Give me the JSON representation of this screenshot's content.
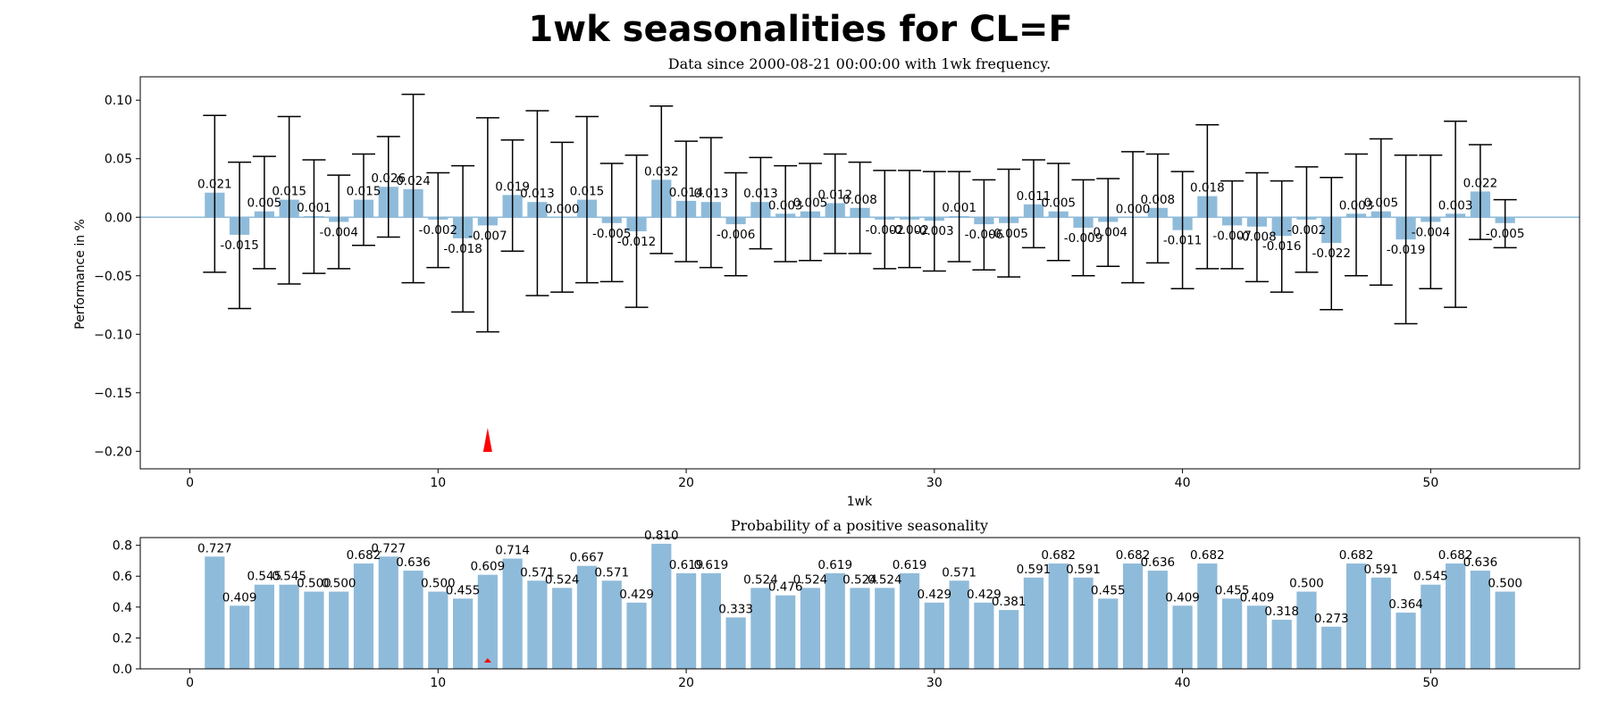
{
  "figure": {
    "title": "1wk seasonalities for CL=F"
  },
  "colors": {
    "bar": "#8fbbda",
    "zero_line": "#8fbbda",
    "error_bar": "#000000",
    "marker": "#ff0000",
    "axes": "#000000"
  },
  "chart_data": [
    {
      "type": "bar",
      "title": "Data since 2000-08-21 00:00:00 with 1wk frequency.",
      "xlabel": "1wk",
      "ylabel": "Performance in %",
      "xlim": [
        -2,
        56
      ],
      "ylim": [
        -0.215,
        0.12
      ],
      "xticks": [
        0,
        10,
        20,
        30,
        40,
        50
      ],
      "xtick_labels": [
        "0",
        "10",
        "20",
        "30",
        "40",
        "50"
      ],
      "yticks": [
        0.1,
        0.05,
        0.0,
        -0.05,
        -0.1,
        -0.15,
        -0.2
      ],
      "ytick_labels": [
        "0.10",
        "0.05",
        "0.00",
        "−0.05",
        "−0.10",
        "−0.15",
        "−0.20"
      ],
      "zero_line": true,
      "grid": false,
      "marker": {
        "x": 12,
        "shape": "red-triangle"
      },
      "x": [
        1,
        2,
        3,
        4,
        5,
        6,
        7,
        8,
        9,
        10,
        11,
        12,
        13,
        14,
        15,
        16,
        17,
        18,
        19,
        20,
        21,
        22,
        23,
        24,
        25,
        26,
        27,
        28,
        29,
        30,
        31,
        32,
        33,
        34,
        35,
        36,
        37,
        38,
        39,
        40,
        41,
        42,
        43,
        44,
        45,
        46,
        47,
        48,
        49,
        50,
        51,
        52,
        53
      ],
      "values": [
        0.021,
        -0.015,
        0.005,
        0.015,
        0.001,
        -0.004,
        0.015,
        0.026,
        0.024,
        -0.002,
        -0.018,
        -0.007,
        0.019,
        0.013,
        0.0,
        0.015,
        -0.005,
        -0.012,
        0.032,
        0.014,
        0.013,
        -0.006,
        0.013,
        0.003,
        0.005,
        0.012,
        0.008,
        -0.002,
        -0.002,
        -0.003,
        0.001,
        -0.006,
        -0.005,
        0.011,
        0.005,
        -0.009,
        -0.004,
        0.0,
        0.008,
        -0.011,
        0.018,
        -0.007,
        -0.008,
        -0.016,
        -0.002,
        -0.022,
        0.003,
        0.005,
        -0.019,
        -0.004,
        0.003,
        0.022,
        -0.005
      ],
      "labels": [
        "0.021",
        "-0.015",
        "0.005",
        "0.015",
        "0.001",
        "-0.004",
        "0.015",
        "0.026",
        "0.024",
        "-0.002",
        "-0.018",
        "-0.007",
        "0.019",
        "0.013",
        "0.000",
        "0.015",
        "-0.005",
        "-0.012",
        "0.032",
        "0.014",
        "0.013",
        "-0.006",
        "0.013",
        "0.003",
        "0.005",
        "0.012",
        "0.008",
        "-0.002",
        "-0.002",
        "-0.003",
        "0.001",
        "-0.006",
        "-0.005",
        "0.011",
        "0.005",
        "-0.009",
        "-0.004",
        "0.000",
        "0.008",
        "-0.011",
        "0.018",
        "-0.007",
        "-0.008",
        "-0.016",
        "-0.002",
        "-0.022",
        "0.003",
        "0.005",
        "-0.019",
        "-0.004",
        "0.003",
        "0.022",
        "-0.005"
      ],
      "error_high": [
        0.087,
        0.047,
        0.052,
        0.086,
        0.049,
        0.036,
        0.054,
        0.069,
        0.105,
        0.038,
        0.044,
        0.085,
        0.066,
        0.091,
        0.064,
        0.086,
        0.046,
        0.053,
        0.095,
        0.065,
        0.068,
        0.038,
        0.051,
        0.044,
        0.046,
        0.054,
        0.047,
        0.04,
        0.04,
        0.039,
        0.039,
        0.032,
        0.041,
        0.049,
        0.046,
        0.032,
        0.033,
        0.056,
        0.054,
        0.039,
        0.079,
        0.031,
        0.038,
        0.031,
        0.043,
        0.034,
        0.054,
        0.067,
        0.053,
        0.053,
        0.082,
        0.062,
        0.015
      ],
      "error_low": [
        -0.047,
        -0.078,
        -0.044,
        -0.057,
        -0.048,
        -0.044,
        -0.024,
        -0.017,
        -0.056,
        -0.043,
        -0.081,
        -0.098,
        -0.029,
        -0.067,
        -0.064,
        -0.056,
        -0.055,
        -0.077,
        -0.031,
        -0.038,
        -0.043,
        -0.05,
        -0.027,
        -0.038,
        -0.037,
        -0.031,
        -0.031,
        -0.044,
        -0.043,
        -0.046,
        -0.038,
        -0.045,
        -0.051,
        -0.026,
        -0.037,
        -0.05,
        -0.042,
        -0.056,
        -0.039,
        -0.061,
        -0.044,
        -0.044,
        -0.055,
        -0.064,
        -0.047,
        -0.079,
        -0.05,
        -0.058,
        -0.091,
        -0.061,
        -0.077,
        -0.019,
        -0.026
      ]
    },
    {
      "type": "bar",
      "title": "Probability of a positive seasonality",
      "xlabel": "",
      "ylabel": "",
      "xlim": [
        -2,
        56
      ],
      "ylim": [
        0,
        0.85
      ],
      "xticks": [
        0,
        10,
        20,
        30,
        40,
        50
      ],
      "xtick_labels": [
        "0",
        "10",
        "20",
        "30",
        "40",
        "50"
      ],
      "yticks": [
        0.0,
        0.2,
        0.4,
        0.6,
        0.8
      ],
      "ytick_labels": [
        "0.0",
        "0.2",
        "0.4",
        "0.6",
        "0.8"
      ],
      "grid": false,
      "marker": {
        "x": 12,
        "shape": "red-triangle"
      },
      "x": [
        1,
        2,
        3,
        4,
        5,
        6,
        7,
        8,
        9,
        10,
        11,
        12,
        13,
        14,
        15,
        16,
        17,
        18,
        19,
        20,
        21,
        22,
        23,
        24,
        25,
        26,
        27,
        28,
        29,
        30,
        31,
        32,
        33,
        34,
        35,
        36,
        37,
        38,
        39,
        40,
        41,
        42,
        43,
        44,
        45,
        46,
        47,
        48,
        49,
        50,
        51,
        52,
        53
      ],
      "values": [
        0.727,
        0.409,
        0.545,
        0.545,
        0.5,
        0.5,
        0.682,
        0.727,
        0.636,
        0.5,
        0.455,
        0.609,
        0.714,
        0.571,
        0.524,
        0.667,
        0.571,
        0.429,
        0.81,
        0.619,
        0.619,
        0.333,
        0.524,
        0.476,
        0.524,
        0.619,
        0.524,
        0.524,
        0.619,
        0.429,
        0.571,
        0.429,
        0.381,
        0.591,
        0.682,
        0.591,
        0.455,
        0.682,
        0.636,
        0.409,
        0.682,
        0.455,
        0.409,
        0.318,
        0.5,
        0.273,
        0.682,
        0.591,
        0.364,
        0.545,
        0.682,
        0.636,
        0.5
      ],
      "labels": [
        "0.727",
        "0.409",
        "0.545",
        "0.545",
        "0.500",
        "0.500",
        "0.682",
        "0.727",
        "0.636",
        "0.500",
        "0.455",
        "0.609",
        "0.714",
        "0.571",
        "0.524",
        "0.667",
        "0.571",
        "0.429",
        "0.810",
        "0.619",
        "0.619",
        "0.333",
        "0.524",
        "0.476",
        "0.524",
        "0.619",
        "0.524",
        "0.524",
        "0.619",
        "0.429",
        "0.571",
        "0.429",
        "0.381",
        "0.591",
        "0.682",
        "0.591",
        "0.455",
        "0.682",
        "0.636",
        "0.409",
        "0.682",
        "0.455",
        "0.409",
        "0.318",
        "0.500",
        "0.273",
        "0.682",
        "0.591",
        "0.364",
        "0.545",
        "0.682",
        "0.636",
        "0.500"
      ]
    }
  ]
}
